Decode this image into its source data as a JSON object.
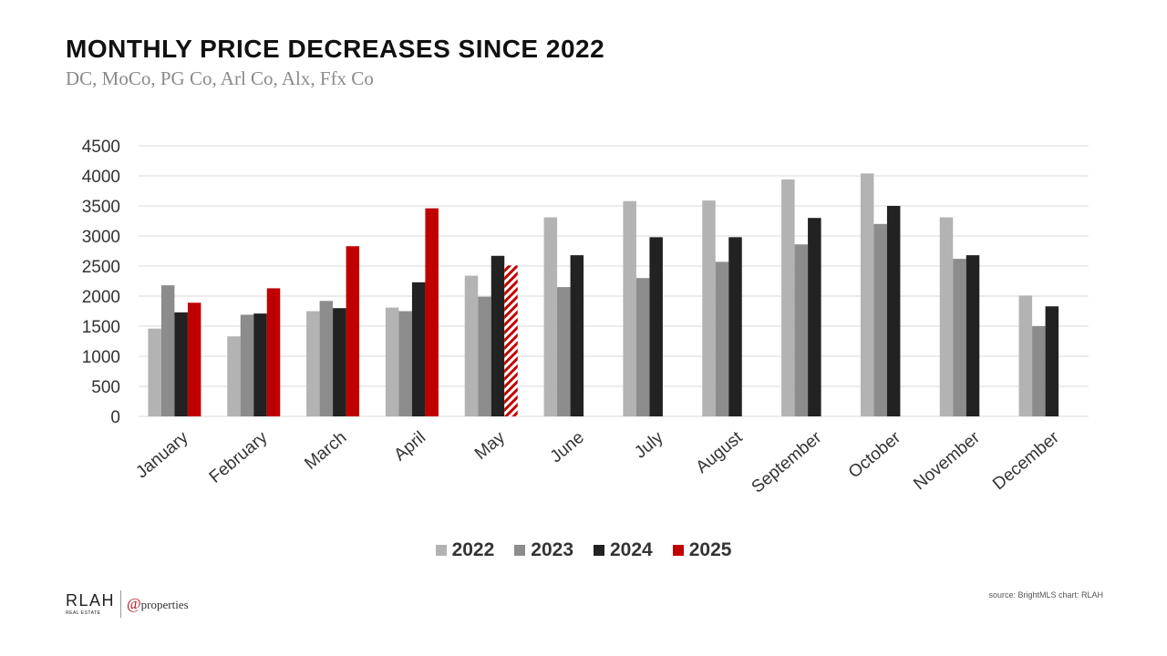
{
  "header": {
    "title": "MONTHLY PRICE DECREASES SINCE 2022",
    "subtitle": "DC, MoCo, PG Co, Arl Co, Alx, Ffx Co"
  },
  "footer": {
    "logo_text": "RLAH",
    "logo_subtext": "REAL ESTATE",
    "partner_at": "@",
    "partner_text": "properties",
    "source": "source: BrightMLS  chart: RLAH"
  },
  "chart_data": {
    "type": "bar",
    "title": "MONTHLY PRICE DECREASES SINCE 2022",
    "subtitle": "DC, MoCo, PG Co, Arl Co, Alx, Ffx Co",
    "xlabel": "",
    "ylabel": "",
    "ylim": [
      0,
      4500
    ],
    "yticks": [
      0,
      500,
      1000,
      1500,
      2000,
      2500,
      3000,
      3500,
      4000,
      4500
    ],
    "grid": true,
    "legend_position": "bottom",
    "categories": [
      "January",
      "February",
      "March",
      "April",
      "May",
      "June",
      "July",
      "August",
      "September",
      "October",
      "November",
      "December"
    ],
    "series": [
      {
        "name": "2022",
        "color": "#b3b3b3",
        "values": [
          1460,
          1330,
          1750,
          1810,
          2340,
          3310,
          3580,
          3590,
          3940,
          4040,
          3310,
          2010
        ]
      },
      {
        "name": "2023",
        "color": "#8c8c8c",
        "values": [
          2180,
          1690,
          1920,
          1750,
          1990,
          2150,
          2300,
          2570,
          2860,
          3200,
          2620,
          1500
        ]
      },
      {
        "name": "2024",
        "color": "#222222",
        "values": [
          1730,
          1710,
          1800,
          2230,
          2670,
          2680,
          2980,
          2980,
          3300,
          3500,
          2680,
          1830
        ]
      },
      {
        "name": "2025",
        "color": "#c00000",
        "values": [
          1890,
          2130,
          2830,
          3460,
          2510,
          null,
          null,
          null,
          null,
          null,
          null,
          null
        ]
      }
    ],
    "partial_month_hatched": "May"
  }
}
